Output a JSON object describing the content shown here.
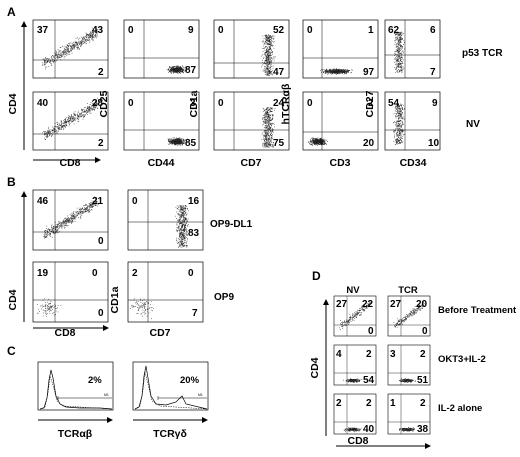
{
  "figure": {
    "panels": {
      "A": {
        "label": "A",
        "rows": [
          {
            "label": "p53 TCR",
            "plots": [
              {
                "x_label": "CD8",
                "y_label": "CD4",
                "q": [
                  "37",
                  "43",
                  "",
                  "2"
                ],
                "pattern": "diag"
              },
              {
                "x_label": "CD44",
                "y_label": "CD25",
                "q": [
                  "0",
                  "9",
                  "",
                  "87"
                ],
                "pattern": "br"
              },
              {
                "x_label": "CD7",
                "y_label": "CD1a",
                "q": [
                  "0",
                  "52",
                  "",
                  "47"
                ],
                "pattern": "rightcol"
              },
              {
                "x_label": "CD3",
                "y_label": "hTCRαβ",
                "q": [
                  "0",
                  "1",
                  "",
                  "97"
                ],
                "pattern": "bottom"
              },
              {
                "x_label": "CD34",
                "y_label": "CD27",
                "q": [
                  "62",
                  "6",
                  "",
                  "7"
                ],
                "pattern": "leftcol"
              }
            ]
          },
          {
            "label": "NV",
            "plots": [
              {
                "x_label": "CD8",
                "y_label": "CD4",
                "q": [
                  "40",
                  "28",
                  "",
                  "2"
                ],
                "pattern": "diag"
              },
              {
                "x_label": "CD44",
                "y_label": "CD25",
                "q": [
                  "0",
                  "3",
                  "",
                  "85"
                ],
                "pattern": "br"
              },
              {
                "x_label": "CD7",
                "y_label": "CD1a",
                "q": [
                  "0",
                  "24",
                  "",
                  "75"
                ],
                "pattern": "rightcol"
              },
              {
                "x_label": "CD3",
                "y_label": "hTCRαβ",
                "q": [
                  "0",
                  "2",
                  "",
                  "20"
                ],
                "pattern": "bl"
              },
              {
                "x_label": "CD34",
                "y_label": "CD27",
                "q": [
                  "54",
                  "9",
                  "",
                  "10"
                ],
                "pattern": "leftcol"
              }
            ]
          }
        ]
      },
      "B": {
        "label": "B",
        "rows": [
          {
            "label": "OP9-DL1",
            "plots": [
              {
                "x_label": "CD8",
                "y_label": "CD4",
                "q": [
                  "46",
                  "21",
                  "",
                  "0"
                ],
                "pattern": "diag"
              },
              {
                "x_label": "CD7",
                "y_label": "CD1a",
                "q": [
                  "0",
                  "16",
                  "",
                  "83"
                ],
                "pattern": "rightcol"
              }
            ]
          },
          {
            "label": "OP9",
            "plots": [
              {
                "x_label": "CD8",
                "y_label": "CD4",
                "q": [
                  "19",
                  "0",
                  "",
                  "0"
                ],
                "pattern": "sparse"
              },
              {
                "x_label": "CD7",
                "y_label": "CD1a",
                "q": [
                  "2",
                  "0",
                  "",
                  "7"
                ],
                "pattern": "sparse"
              }
            ]
          }
        ]
      },
      "C": {
        "label": "C",
        "histograms": [
          {
            "x_label": "TCRαβ",
            "percent": "2%",
            "marker": "M1"
          },
          {
            "x_label": "TCRγδ",
            "percent": "20%",
            "marker": "M1"
          }
        ]
      },
      "D": {
        "label": "D",
        "columns": [
          "NV",
          "TCR"
        ],
        "y_label": "CD4",
        "x_label": "CD8",
        "rows": [
          {
            "label": "Before Treatment",
            "plots": [
              [
                "27",
                "22",
                "",
                "0"
              ],
              [
                "27",
                "20",
                "",
                "0"
              ]
            ]
          },
          {
            "label": "OKT3+IL-2",
            "plots": [
              [
                "4",
                "2",
                "",
                "54"
              ],
              [
                "3",
                "2",
                "",
                "51"
              ]
            ]
          },
          {
            "label": "IL-2 alone",
            "plots": [
              [
                "2",
                "2",
                "",
                "40"
              ],
              [
                "1",
                "2",
                "",
                "38"
              ]
            ]
          }
        ]
      }
    }
  }
}
